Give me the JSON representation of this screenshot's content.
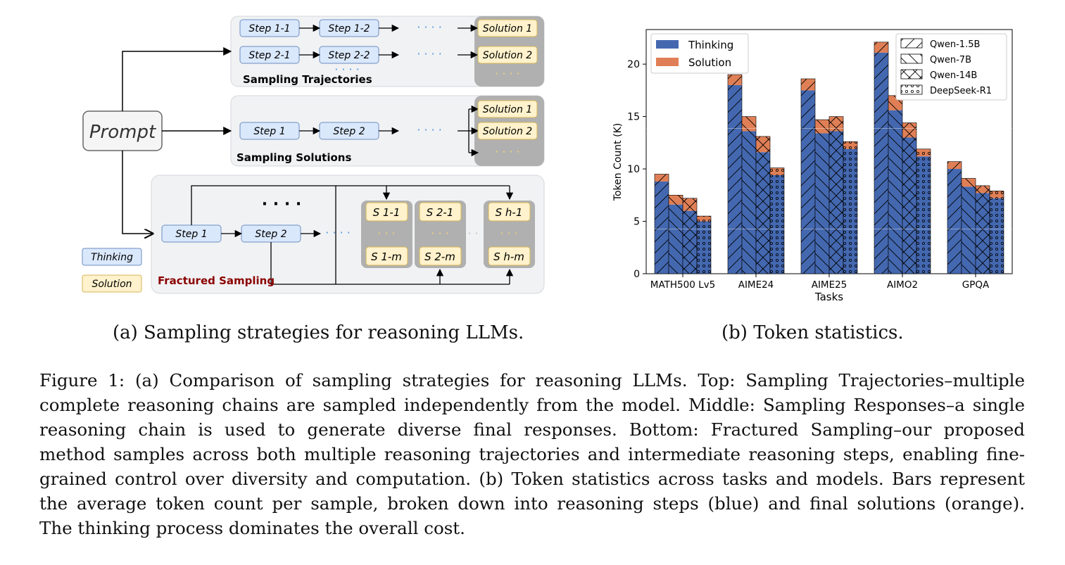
{
  "diagram": {
    "prompt": "Prompt",
    "trajectories": {
      "title": "Sampling Trajectories",
      "row1": [
        "Step 1-1",
        "Step 1-2"
      ],
      "row2": [
        "Step 2-1",
        "Step 2-2"
      ],
      "solutions": [
        "Solution 1",
        "Solution 2"
      ],
      "dots": "· · · ·"
    },
    "solutions_panel": {
      "title": "Sampling Solutions",
      "steps": [
        "Step 1",
        "Step 2"
      ],
      "solutions": [
        "Solution 1",
        "Solution 2"
      ],
      "dots": "· · · ·"
    },
    "fractured": {
      "title": "Fractured Sampling",
      "steps": [
        "Step 1",
        "Step 2"
      ],
      "top": [
        "S 1-1",
        "S 2-1",
        "S h-1"
      ],
      "bottom": [
        "S 1-m",
        "S 2-m",
        "S h-m"
      ],
      "dots": "· · · ·",
      "mid_dots": "· · ·"
    },
    "legend": {
      "thinking": "Thinking",
      "solution": "Solution"
    },
    "colors": {
      "thinking_fill": "#dae8fc",
      "thinking_stroke": "#6c8ebf",
      "solution_fill": "#fff2cc",
      "solution_stroke": "#d6b656",
      "panel_fill": "#f1f2f4",
      "sol_panel_fill": "#b0b0b0",
      "fractured_title": "#8b0000"
    }
  },
  "chart_data": {
    "type": "bar",
    "stacked": true,
    "ylabel": "Token Count (K)",
    "xlabel": "Tasks",
    "ylim": [
      0,
      23.3
    ],
    "yticks": [
      0,
      5,
      10,
      15,
      20
    ],
    "categories": [
      "MATH500 Lv5",
      "AIME24",
      "AIME25",
      "AIMO2",
      "GPQA"
    ],
    "models": [
      "Qwen-1.5B",
      "Qwen-7B",
      "Qwen-14B",
      "DeepSeek-R1"
    ],
    "model_hatches": [
      "diagonal",
      "backdiagonal",
      "cross",
      "dots"
    ],
    "stack_series": [
      {
        "name": "Thinking",
        "color": "#4468b0"
      },
      {
        "name": "Solution",
        "color": "#e07f55"
      }
    ],
    "thinking": [
      [
        8.8,
        6.6,
        6.0,
        5.0
      ],
      [
        18.0,
        13.6,
        11.6,
        9.4
      ],
      [
        17.5,
        13.4,
        13.6,
        11.9
      ],
      [
        21.1,
        15.6,
        13.0,
        11.2
      ],
      [
        10.0,
        8.3,
        7.7,
        7.2
      ]
    ],
    "solution": [
      [
        0.7,
        0.9,
        1.2,
        0.5
      ],
      [
        1.0,
        1.4,
        1.5,
        0.7
      ],
      [
        1.1,
        1.3,
        1.4,
        0.7
      ],
      [
        1.0,
        1.4,
        1.4,
        0.7
      ],
      [
        0.7,
        0.8,
        0.7,
        0.7
      ]
    ],
    "legend_stack_position": "top-left",
    "legend_models_position": "top-right"
  },
  "captions": {
    "a": "(a) Sampling strategies for reasoning LLMs.",
    "b": "(b) Token statistics.",
    "figure_lines": [
      "Figure 1: (a) Comparison of sampling strategies for reasoning LLMs. Top: Sampling Trajectories–multiple",
      "complete reasoning chains are sampled independently from the model. Middle: Sampling Responses–a single",
      "reasoning chain is used to generate diverse final responses.  Bottom: Fractured Sampling–our proposed",
      "method samples across both multiple reasoning trajectories and intermediate reasoning steps, enabling fine-",
      "grained control over diversity and computation. (b) Token statistics across tasks and models. Bars represent",
      "the average token count per sample, broken down into reasoning steps (blue) and final solutions (orange).",
      "The thinking process dominates the overall cost."
    ]
  }
}
